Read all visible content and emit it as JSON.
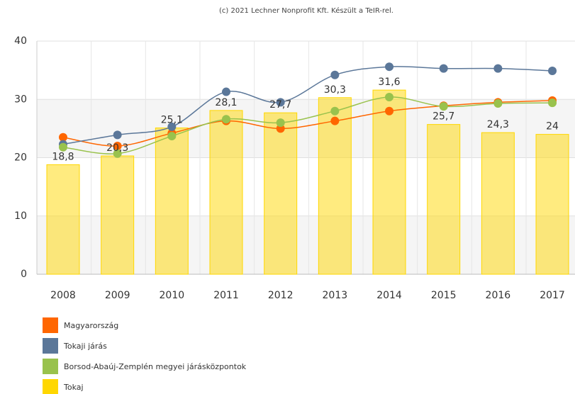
{
  "chart_data": {
    "type": "combo",
    "subtitle": "(c) 2021 Lechner Nonprofit Kft. Készült a TeIR-rel.",
    "categories": [
      "2008",
      "2009",
      "2010",
      "2011",
      "2012",
      "2013",
      "2014",
      "2015",
      "2016",
      "2017"
    ],
    "ylim": [
      0,
      40
    ],
    "yticks": [
      0,
      10,
      20,
      30,
      40
    ],
    "grid": true,
    "alternate_bands": true,
    "legend": "bottom-left",
    "series": [
      {
        "name": "Magyarország",
        "type": "line",
        "color": "#ff6600",
        "values": [
          23.5,
          22.0,
          24.2,
          26.3,
          25.0,
          26.3,
          28.0,
          28.9,
          29.5,
          29.8
        ]
      },
      {
        "name": "Tokaji járás",
        "type": "line",
        "color": "#5b7799",
        "values": [
          22.3,
          23.9,
          25.3,
          31.3,
          29.5,
          34.2,
          35.6,
          35.3,
          35.3,
          34.9
        ]
      },
      {
        "name": "Borsod-Abaúj-Zemplén megyei járásközpontok",
        "type": "line",
        "color": "#99c24d",
        "values": [
          21.8,
          20.7,
          23.7,
          26.6,
          26.0,
          28.0,
          30.4,
          28.8,
          29.3,
          29.4
        ]
      },
      {
        "name": "Tokaj",
        "type": "bar",
        "color": "#ffd700",
        "values": [
          18.8,
          20.3,
          25.1,
          28.1,
          27.7,
          30.3,
          31.6,
          25.7,
          24.3,
          24
        ],
        "value_labels": [
          "18,8",
          "20,3",
          "25,1",
          "28,1",
          "27,7",
          "30,3",
          "31,6",
          "25,7",
          "24,3",
          "24"
        ]
      }
    ]
  }
}
